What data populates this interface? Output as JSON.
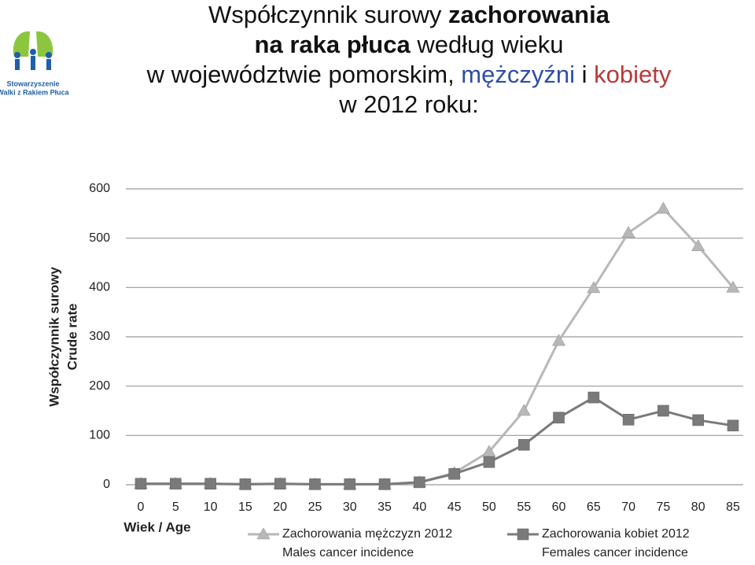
{
  "logo": {
    "line1": "Stowarzyszenie",
    "line2": "Walki z Rakiem Płuca"
  },
  "title_lines": [
    [
      {
        "text": "Współczynnik surowy "
      },
      {
        "text": "zachorowania",
        "bold": true
      }
    ],
    [
      {
        "text": "na raka płuca ",
        "bold": true
      },
      {
        "text": "według wieku"
      }
    ],
    [
      {
        "text": "w województwie pomorskim, "
      },
      {
        "text": "mężczyźni",
        "color": "#2e4ea6"
      },
      {
        "text": " i "
      },
      {
        "text": "kobiety",
        "color": "#b83a3a"
      }
    ],
    [
      {
        "text": "w 2012 roku:"
      }
    ]
  ],
  "chart_data": {
    "type": "line",
    "ylabel": [
      "Współczynnik surowy",
      "Crude rate"
    ],
    "xlabel": "Wiek / Age",
    "x": [
      0,
      5,
      10,
      15,
      20,
      25,
      30,
      35,
      40,
      45,
      50,
      55,
      60,
      65,
      70,
      75,
      80,
      85
    ],
    "xlim": [
      0,
      85
    ],
    "xticks": [
      0,
      5,
      10,
      15,
      20,
      25,
      30,
      35,
      40,
      45,
      50,
      55,
      60,
      65,
      70,
      75,
      80,
      85
    ],
    "ylim": [
      0,
      600
    ],
    "yticks": [
      0,
      100,
      200,
      300,
      400,
      500,
      600
    ],
    "grid": true,
    "series": [
      {
        "name": "Zachorowania mężczyzn 2012",
        "name_en": "Males cancer incidence",
        "color": "#b8b8b8",
        "marker": "triangle",
        "values": [
          2,
          2,
          2,
          1,
          2,
          1,
          1,
          1,
          5,
          24,
          67,
          150,
          292,
          399,
          511,
          560,
          484,
          400
        ]
      },
      {
        "name": "Zachorowania kobiet 2012",
        "name_en": "Females cancer incidence",
        "color": "#7a7a7a",
        "marker": "square",
        "values": [
          2,
          2,
          2,
          1,
          2,
          1,
          1,
          1,
          5,
          22,
          46,
          81,
          136,
          177,
          132,
          150,
          131,
          120
        ]
      }
    ]
  }
}
